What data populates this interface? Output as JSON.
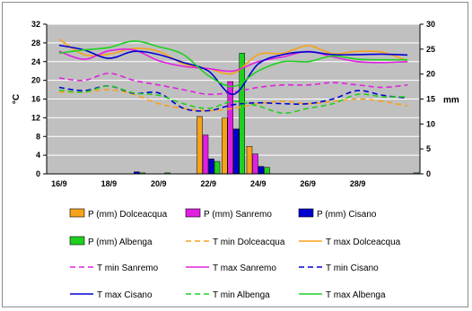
{
  "chart_data": {
    "type": "bar+line",
    "title": "",
    "x_tick_labels": [
      "16/9",
      "18/9",
      "20/9",
      "22/9",
      "24/9",
      "26/9",
      "28/9"
    ],
    "x_tick_positions": [
      1,
      3,
      5,
      7,
      9,
      11,
      13
    ],
    "x_range": [
      0.5,
      15.5
    ],
    "bar_days": [
      1,
      2,
      3,
      4,
      5,
      6,
      7,
      8,
      9,
      10,
      11,
      12,
      13,
      14,
      15
    ],
    "y_left": {
      "label": "°C",
      "min": 0,
      "max": 32,
      "ticks": [
        0,
        4,
        8,
        12,
        16,
        20,
        24,
        28,
        32
      ]
    },
    "y_right": {
      "label": "mm",
      "min": 0,
      "max": 30,
      "ticks": [
        0,
        5,
        10,
        15,
        20,
        25,
        30
      ]
    },
    "grid": true,
    "plot_background": "#c0c0c0",
    "bar_series": [
      {
        "name": "P (mm) Dolceacqua",
        "color": "#f7a21b",
        "values": [
          0,
          0,
          0,
          0,
          0,
          0,
          11.5,
          11.2,
          5.5,
          0,
          0,
          0,
          0,
          0,
          0
        ]
      },
      {
        "name": "P (mm) Sanremo",
        "color": "#e020e0",
        "values": [
          0,
          0,
          0,
          0,
          0,
          0,
          7.8,
          18.5,
          4,
          0,
          0,
          0,
          0,
          0,
          0
        ]
      },
      {
        "name": "P (mm) Cisano",
        "color": "#0000d0",
        "values": [
          0,
          0,
          0,
          0.4,
          0,
          0,
          3,
          9,
          1.5,
          0,
          0,
          0,
          0,
          0,
          0
        ]
      },
      {
        "name": "P (mm) Albenga",
        "color": "#20d020",
        "values": [
          0,
          0,
          0,
          0.2,
          0.2,
          0,
          2.5,
          24.2,
          1.3,
          0,
          0,
          0,
          0,
          0,
          0.2
        ]
      }
    ],
    "line_series": [
      {
        "name": "T min Dolceacqua",
        "color": "#f7a21b",
        "dash": true,
        "values": [
          17.5,
          17.5,
          18,
          17,
          15,
          14,
          13.5,
          14,
          15,
          15.5,
          15,
          15.5,
          16,
          15.5,
          14.5
        ]
      },
      {
        "name": "T max Dolceacqua",
        "color": "#f7a21b",
        "dash": false,
        "values": [
          28.8,
          25.5,
          25.6,
          26.8,
          26.2,
          23.5,
          22.5,
          21.5,
          25.5,
          25.8,
          27.4,
          25.7,
          26.2,
          26,
          24.2
        ]
      },
      {
        "name": "T min Sanremo",
        "color": "#e020e0",
        "dash": true,
        "values": [
          20.5,
          20,
          21.5,
          20,
          19,
          18,
          17,
          17.5,
          18.5,
          19,
          19,
          19.5,
          19,
          18.5,
          19
        ]
      },
      {
        "name": "T max Sanremo",
        "color": "#e020e0",
        "dash": false,
        "values": [
          26.2,
          24.5,
          26.3,
          26.5,
          24.2,
          23,
          22.5,
          22,
          24,
          25,
          26.2,
          25,
          24,
          23.8,
          24
        ]
      },
      {
        "name": "T min Cisano",
        "color": "#0000d0",
        "dash": true,
        "values": [
          18.5,
          17.8,
          18.8,
          17.2,
          17.3,
          14,
          13.5,
          14.8,
          15.2,
          15,
          15,
          16,
          17.8,
          16.8,
          16.2
        ]
      },
      {
        "name": "T max Cisano",
        "color": "#0000d0",
        "dash": false,
        "values": [
          27.5,
          26.5,
          24.7,
          26.2,
          25.5,
          23.8,
          22,
          17,
          23.5,
          25.5,
          26.1,
          25.5,
          25.5,
          25.6,
          25.4
        ]
      },
      {
        "name": "T min Albenga",
        "color": "#20d020",
        "dash": true,
        "values": [
          17.9,
          17.5,
          18.8,
          17.3,
          16.8,
          15,
          14,
          15.5,
          14.5,
          13,
          14,
          15,
          17,
          16.5,
          16.5
        ]
      },
      {
        "name": "T max Albenga",
        "color": "#20d020",
        "dash": false,
        "values": [
          25.8,
          26.5,
          27,
          28.4,
          27.2,
          25.5,
          21,
          18.7,
          22,
          24,
          24,
          25.2,
          24.5,
          24.4,
          24.4
        ]
      }
    ],
    "legend": {
      "placement": "bottom",
      "rows": [
        [
          "P (mm) Dolceacqua",
          "P (mm) Sanremo",
          "P (mm) Cisano"
        ],
        [
          "P (mm) Albenga",
          "T min Dolceacqua",
          "T max Dolceacqua"
        ],
        [
          "T min Sanremo",
          "T max Sanremo",
          "T min Cisano"
        ],
        [
          "T max Cisano",
          "T min Albenga",
          "T max Albenga"
        ]
      ]
    }
  }
}
